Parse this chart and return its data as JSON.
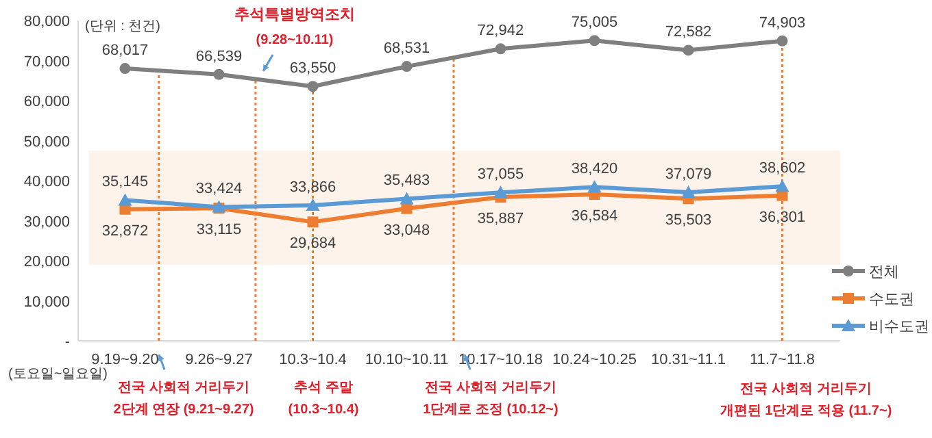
{
  "chart_data": {
    "type": "line",
    "categories": [
      "9.19~9.20",
      "9.26~9.27",
      "10.3~10.4",
      "10.10~10.11",
      "10.17~10.18",
      "10.24~10.25",
      "10.31~11.1",
      "11.7~11.8"
    ],
    "series": [
      {
        "name": "전체",
        "color": "#7f7f7f",
        "marker": "circle",
        "values": [
          68017,
          66539,
          63550,
          68531,
          72942,
          75005,
          72582,
          74903
        ],
        "value_labels": [
          "68,017",
          "66,539",
          "63,550",
          "68,531",
          "72,942",
          "75,005",
          "72,582",
          "74,903"
        ]
      },
      {
        "name": "수도권",
        "color": "#ed7d31",
        "marker": "square",
        "values": [
          32872,
          33115,
          29684,
          33048,
          35887,
          36584,
          35503,
          36301
        ],
        "value_labels": [
          "32,872",
          "33,115",
          "29,684",
          "33,048",
          "35,887",
          "36,584",
          "35,503",
          "36,301"
        ]
      },
      {
        "name": "비수도권",
        "color": "#5b9bd5",
        "marker": "triangle",
        "values": [
          35145,
          33424,
          33866,
          35483,
          37055,
          38420,
          37079,
          38602
        ],
        "value_labels": [
          "35,145",
          "33,424",
          "33,866",
          "35,483",
          "37,055",
          "38,420",
          "37,079",
          "38,602"
        ]
      }
    ],
    "ylim": [
      0,
      80000
    ],
    "yticks": [
      {
        "value": 0,
        "label": "-"
      },
      {
        "value": 10000,
        "label": "10,000"
      },
      {
        "value": 20000,
        "label": "20,000"
      },
      {
        "value": 30000,
        "label": "30,000"
      },
      {
        "value": 40000,
        "label": "40,000"
      },
      {
        "value": 50000,
        "label": "50,000"
      },
      {
        "value": 60000,
        "label": "60,000"
      },
      {
        "value": 70000,
        "label": "70,000"
      },
      {
        "value": 80000,
        "label": "80,000"
      }
    ],
    "legend": "bottom right",
    "line_style": "solid",
    "bands": [
      {
        "axis": "y",
        "from": 19000,
        "to": 47500,
        "color": "#fdf3ea"
      }
    ],
    "annotations": [
      "(단위 : 천건)",
      "추석특별방역조치",
      "(9.28~10.11)",
      "(토요일~일요일)",
      "전국 사회적 거리두기\n2단계 연장 (9.21~9.27)",
      "추석 주말\n(10.3~10.4)",
      "전국 사회적 거리두기\n1단계로 조정 (10.12~)",
      "전국 사회적 거리두기\n개편된 1단계로 적용 (11.7~)"
    ]
  }
}
